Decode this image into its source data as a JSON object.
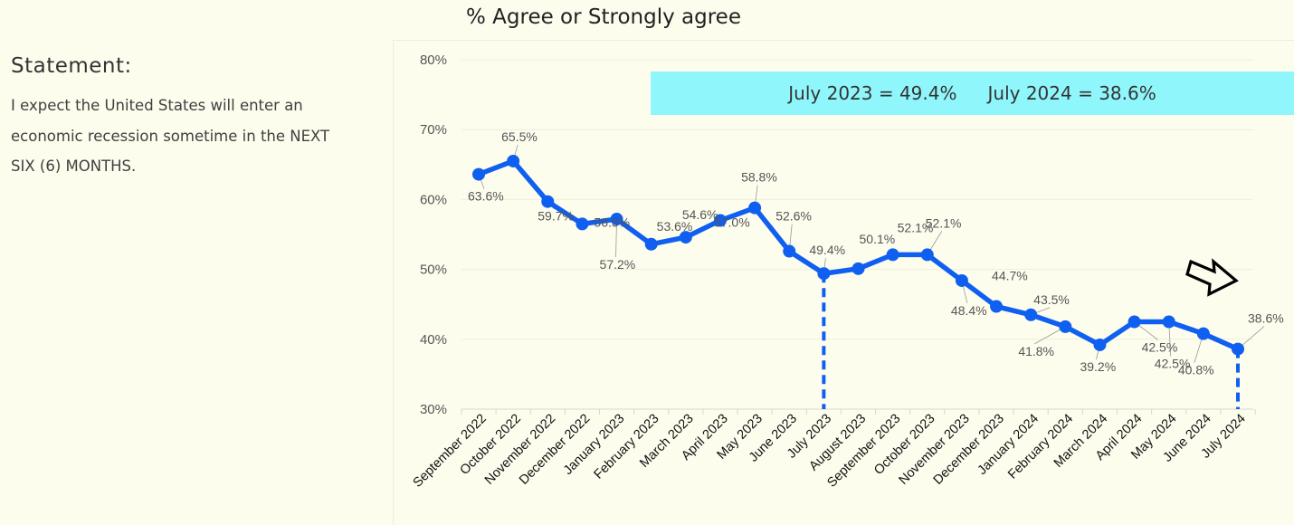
{
  "statement": {
    "heading": "Statement:",
    "text": "I expect the United States will enter an economic recession sometime in the NEXT SIX (6) MONTHS."
  },
  "colors": {
    "background": "#fdfdee",
    "line": "#0f5ff0",
    "banner": "#8ff7fc",
    "grid": "#efefdc"
  },
  "icons": {
    "arrow": "arrow-right-icon"
  },
  "chart_data": {
    "type": "line",
    "title": "% Agree or Strongly agree",
    "xlabel": "",
    "ylabel": "",
    "ylim": [
      30,
      80
    ],
    "yticks": [
      80,
      70,
      60,
      50,
      40,
      30
    ],
    "ytick_labels": [
      "80%",
      "70%",
      "60%",
      "50%",
      "40%",
      "30%"
    ],
    "grid": true,
    "categories": [
      "September 2022",
      "October 2022",
      "November 2022",
      "December 2022",
      "January 2023",
      "February 2023",
      "March 2023",
      "April 2023",
      "May 2023",
      "June 2023",
      "July 2023",
      "August 2023",
      "September 2023",
      "October 2023",
      "November 2023",
      "December 2023",
      "January 2024",
      "February 2024",
      "March 2024",
      "April 2024",
      "May 2024",
      "June 2024",
      "July 2024"
    ],
    "series": [
      {
        "values": [
          63.6,
          65.5,
          59.7,
          56.5,
          57.2,
          53.6,
          54.6,
          57.0,
          58.8,
          52.6,
          49.4,
          50.1,
          52.1,
          52.1,
          48.4,
          44.7,
          43.5,
          41.8,
          39.2,
          42.5,
          42.5,
          40.8,
          38.6
        ],
        "labels": [
          "63.6%",
          "65.5%",
          "59.7%",
          "56.5%",
          "57.2%",
          "53.6%",
          "54.6%",
          "57.0%",
          "58.8%",
          "52.6%",
          "49.4%",
          "50.1%",
          "52.1%",
          "52.1%",
          "48.4%",
          "44.7%",
          "43.5%",
          "41.8%",
          "39.2%",
          "42.5%",
          "42.5%",
          "40.8%",
          "38.6%"
        ]
      }
    ],
    "highlighted_categories": [
      "July 2023",
      "July 2024"
    ],
    "annotations": [
      "July 2023 = 49.4%",
      "July 2024 = 38.6%"
    ]
  }
}
